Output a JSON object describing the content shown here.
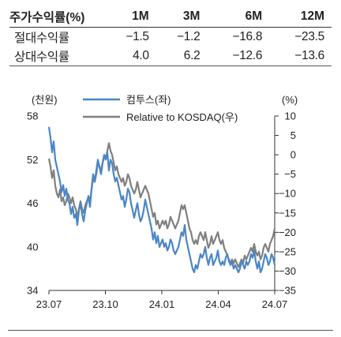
{
  "table": {
    "header": [
      "주가수익률(%)",
      "1M",
      "3M",
      "6M",
      "12M"
    ],
    "rows": [
      {
        "label": "절대수익률",
        "values": [
          "−1.5",
          "−1.2",
          "−16.8",
          "−23.5"
        ]
      },
      {
        "label": "상대수익률",
        "values": [
          "4.0",
          "6.2",
          "−12.6",
          "−13.6"
        ]
      }
    ]
  },
  "chart_data": {
    "type": "line",
    "y_left_label": "(천원)",
    "y_right_label": "(%)",
    "y_left_ticks": [
      "58",
      "52",
      "46",
      "40",
      "34"
    ],
    "y_right_ticks": [
      "10",
      "5",
      "0",
      "−5",
      "−10",
      "−15",
      "−20",
      "−25",
      "−30",
      "−35"
    ],
    "x_ticks": [
      "23.07",
      "23.10",
      "24.01",
      "24.04",
      "24.07"
    ],
    "ylim_left": [
      34,
      58
    ],
    "ylim_right": [
      -35,
      10
    ],
    "colors": {
      "series1": "#4a86c8",
      "series2": "#7f7f7f"
    },
    "series": [
      {
        "name": "컴투스(좌)",
        "axis": "left",
        "x": [
          0,
          2,
          4,
          6,
          8,
          10,
          12,
          14,
          16,
          18,
          20,
          22,
          24,
          26,
          28,
          30,
          32,
          34,
          36,
          38,
          40,
          42,
          44,
          46,
          48,
          50,
          52,
          54,
          56,
          58,
          60,
          62,
          64,
          66,
          68,
          70,
          72,
          74,
          76,
          78,
          80,
          82,
          84,
          86,
          88,
          90,
          92,
          94,
          96,
          98,
          100,
          102,
          104,
          106,
          108,
          110,
          112,
          114,
          116,
          118,
          120,
          122,
          124,
          126,
          128,
          130,
          132,
          134,
          136,
          138,
          140,
          142,
          144,
          146,
          148,
          150,
          152,
          154,
          156,
          158,
          160,
          162,
          164,
          166,
          168,
          170,
          172,
          174,
          176,
          178,
          180,
          182,
          184,
          186,
          188,
          190,
          192,
          194,
          196,
          198,
          200,
          202,
          204,
          206,
          208,
          210,
          212,
          214,
          216,
          218,
          220,
          222,
          224,
          226,
          228,
          230,
          232,
          234,
          236,
          238,
          240,
          242,
          244,
          246,
          248,
          250,
          252,
          254,
          256,
          258,
          260,
          262,
          264,
          266,
          268,
          270,
          272,
          274,
          276,
          278,
          280,
          282,
          284,
          286
        ],
        "values": [
          56.5,
          55.0,
          53.0,
          54.5,
          52.0,
          51.0,
          50.0,
          49.0,
          47.5,
          48.5,
          47.0,
          48.0,
          46.5,
          46.0,
          44.5,
          45.5,
          44.0,
          44.5,
          43.0,
          45.0,
          46.0,
          44.5,
          43.5,
          45.0,
          46.0,
          47.0,
          45.5,
          48.0,
          50.0,
          49.0,
          50.5,
          52.0,
          51.0,
          50.0,
          51.5,
          52.5,
          52.0,
          53.0,
          50.5,
          52.0,
          51.5,
          50.0,
          49.0,
          49.5,
          48.5,
          47.5,
          46.5,
          47.0,
          45.5,
          46.5,
          48.0,
          47.5,
          46.0,
          45.0,
          44.0,
          45.0,
          46.0,
          44.5,
          43.5,
          44.0,
          45.0,
          46.5,
          45.5,
          44.5,
          43.5,
          42.5,
          41.0,
          42.0,
          40.5,
          41.5,
          40.0,
          40.5,
          41.0,
          40.0,
          40.5,
          39.5,
          40.0,
          41.0,
          40.5,
          39.5,
          39.0,
          39.5,
          40.0,
          41.0,
          42.0,
          41.5,
          43.0,
          41.0,
          40.0,
          39.0,
          38.0,
          37.0,
          36.5,
          37.5,
          37.0,
          38.0,
          39.0,
          38.5,
          39.0,
          40.0,
          38.5,
          37.5,
          38.5,
          39.0,
          37.5,
          38.0,
          38.5,
          39.5,
          38.0,
          37.5,
          38.0,
          37.5,
          38.5,
          39.0,
          38.0,
          37.5,
          38.0,
          37.0,
          37.5,
          37.0,
          36.5,
          37.0,
          38.0,
          37.5,
          37.0,
          38.0,
          37.5,
          38.0,
          39.0,
          38.5,
          39.5,
          38.0,
          37.0,
          38.0,
          36.5,
          37.0,
          38.0,
          39.0,
          38.5,
          37.5,
          38.0,
          39.0,
          38.5,
          37.5
        ]
      },
      {
        "name": "Relative to KOSDAQ(우)",
        "axis": "right",
        "x": [
          0,
          2,
          4,
          6,
          8,
          10,
          12,
          14,
          16,
          18,
          20,
          22,
          24,
          26,
          28,
          30,
          32,
          34,
          36,
          38,
          40,
          42,
          44,
          46,
          48,
          50,
          52,
          54,
          56,
          58,
          60,
          62,
          64,
          66,
          68,
          70,
          72,
          74,
          76,
          78,
          80,
          82,
          84,
          86,
          88,
          90,
          92,
          94,
          96,
          98,
          100,
          102,
          104,
          106,
          108,
          110,
          112,
          114,
          116,
          118,
          120,
          122,
          124,
          126,
          128,
          130,
          132,
          134,
          136,
          138,
          140,
          142,
          144,
          146,
          148,
          150,
          152,
          154,
          156,
          158,
          160,
          162,
          164,
          166,
          168,
          170,
          172,
          174,
          176,
          178,
          180,
          182,
          184,
          186,
          188,
          190,
          192,
          194,
          196,
          198,
          200,
          202,
          204,
          206,
          208,
          210,
          212,
          214,
          216,
          218,
          220,
          222,
          224,
          226,
          228,
          230,
          232,
          234,
          236,
          238,
          240,
          242,
          244,
          246,
          248,
          250,
          252,
          254,
          256,
          258,
          260,
          262,
          264,
          266,
          268,
          270,
          272,
          274,
          276,
          278,
          280,
          282,
          284,
          286
        ],
        "values": [
          -1.0,
          -3.0,
          -6.0,
          -4.0,
          -8.0,
          -10.0,
          -11.0,
          -9.0,
          -12.0,
          -11.0,
          -13.0,
          -12.0,
          -10.0,
          -11.0,
          -12.5,
          -11.0,
          -13.0,
          -14.0,
          -16.0,
          -14.0,
          -12.0,
          -14.0,
          -15.0,
          -13.0,
          -12.0,
          -11.0,
          -12.0,
          -9.0,
          -6.0,
          -7.0,
          -5.0,
          -2.0,
          -3.0,
          -4.0,
          -2.0,
          0.0,
          -1.0,
          1.0,
          3.0,
          1.0,
          0.0,
          -2.0,
          -4.0,
          -3.0,
          -5.0,
          -6.0,
          -7.0,
          -6.0,
          -8.0,
          -7.0,
          -5.0,
          -6.0,
          -8.0,
          -9.0,
          -10.0,
          -9.0,
          -7.0,
          -9.0,
          -11.0,
          -10.0,
          -9.0,
          -8.0,
          -9.0,
          -10.0,
          -12.0,
          -14.0,
          -16.0,
          -15.0,
          -18.0,
          -17.0,
          -19.0,
          -18.0,
          -17.0,
          -18.0,
          -17.0,
          -19.0,
          -18.0,
          -16.0,
          -17.0,
          -18.0,
          -19.0,
          -18.0,
          -17.0,
          -15.0,
          -13.0,
          -14.0,
          -13.0,
          -15.0,
          -17.0,
          -19.0,
          -20.0,
          -22.0,
          -23.0,
          -22.0,
          -23.0,
          -21.0,
          -20.0,
          -21.0,
          -22.0,
          -20.0,
          -22.0,
          -24.0,
          -23.0,
          -21.0,
          -23.0,
          -22.0,
          -21.0,
          -20.0,
          -22.0,
          -23.0,
          -22.0,
          -24.0,
          -25.0,
          -26.0,
          -27.0,
          -28.0,
          -27.0,
          -28.0,
          -27.0,
          -28.0,
          -29.0,
          -28.0,
          -27.0,
          -28.0,
          -26.0,
          -27.0,
          -26.0,
          -25.0,
          -24.0,
          -25.0,
          -23.0,
          -25.0,
          -26.0,
          -25.0,
          -27.0,
          -26.0,
          -24.0,
          -23.0,
          -24.0,
          -25.0,
          -23.0,
          -22.0,
          -21.0,
          -19.0
        ]
      }
    ]
  }
}
